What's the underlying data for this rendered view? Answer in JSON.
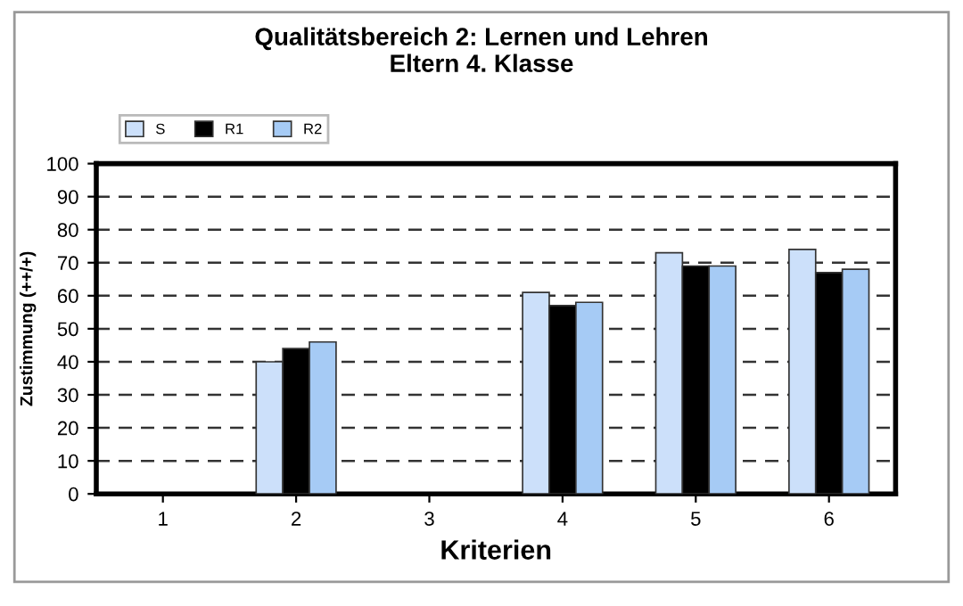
{
  "chart_data": {
    "type": "bar",
    "title": "Qualitätsbereich 2: Lernen und Lehren\nEltern 4. Klasse",
    "xlabel": "Kriterien",
    "ylabel": "Zustimmung (++/+)",
    "categories": [
      "1",
      "2",
      "3",
      "4",
      "5",
      "6"
    ],
    "series": [
      {
        "name": "S",
        "color": "#cce0fa",
        "values": [
          null,
          40,
          null,
          61,
          73,
          74
        ]
      },
      {
        "name": "R1",
        "color": "#000000",
        "values": [
          null,
          44,
          null,
          57,
          69,
          67
        ]
      },
      {
        "name": "R2",
        "color": "#a6cbf5",
        "values": [
          null,
          46,
          null,
          58,
          69,
          68
        ]
      }
    ],
    "ylim": [
      0,
      100
    ],
    "yticks": [
      0,
      10,
      20,
      30,
      40,
      50,
      60,
      70,
      80,
      90,
      100
    ],
    "grid": "y",
    "line_style": "dashed",
    "legend": "top left"
  }
}
